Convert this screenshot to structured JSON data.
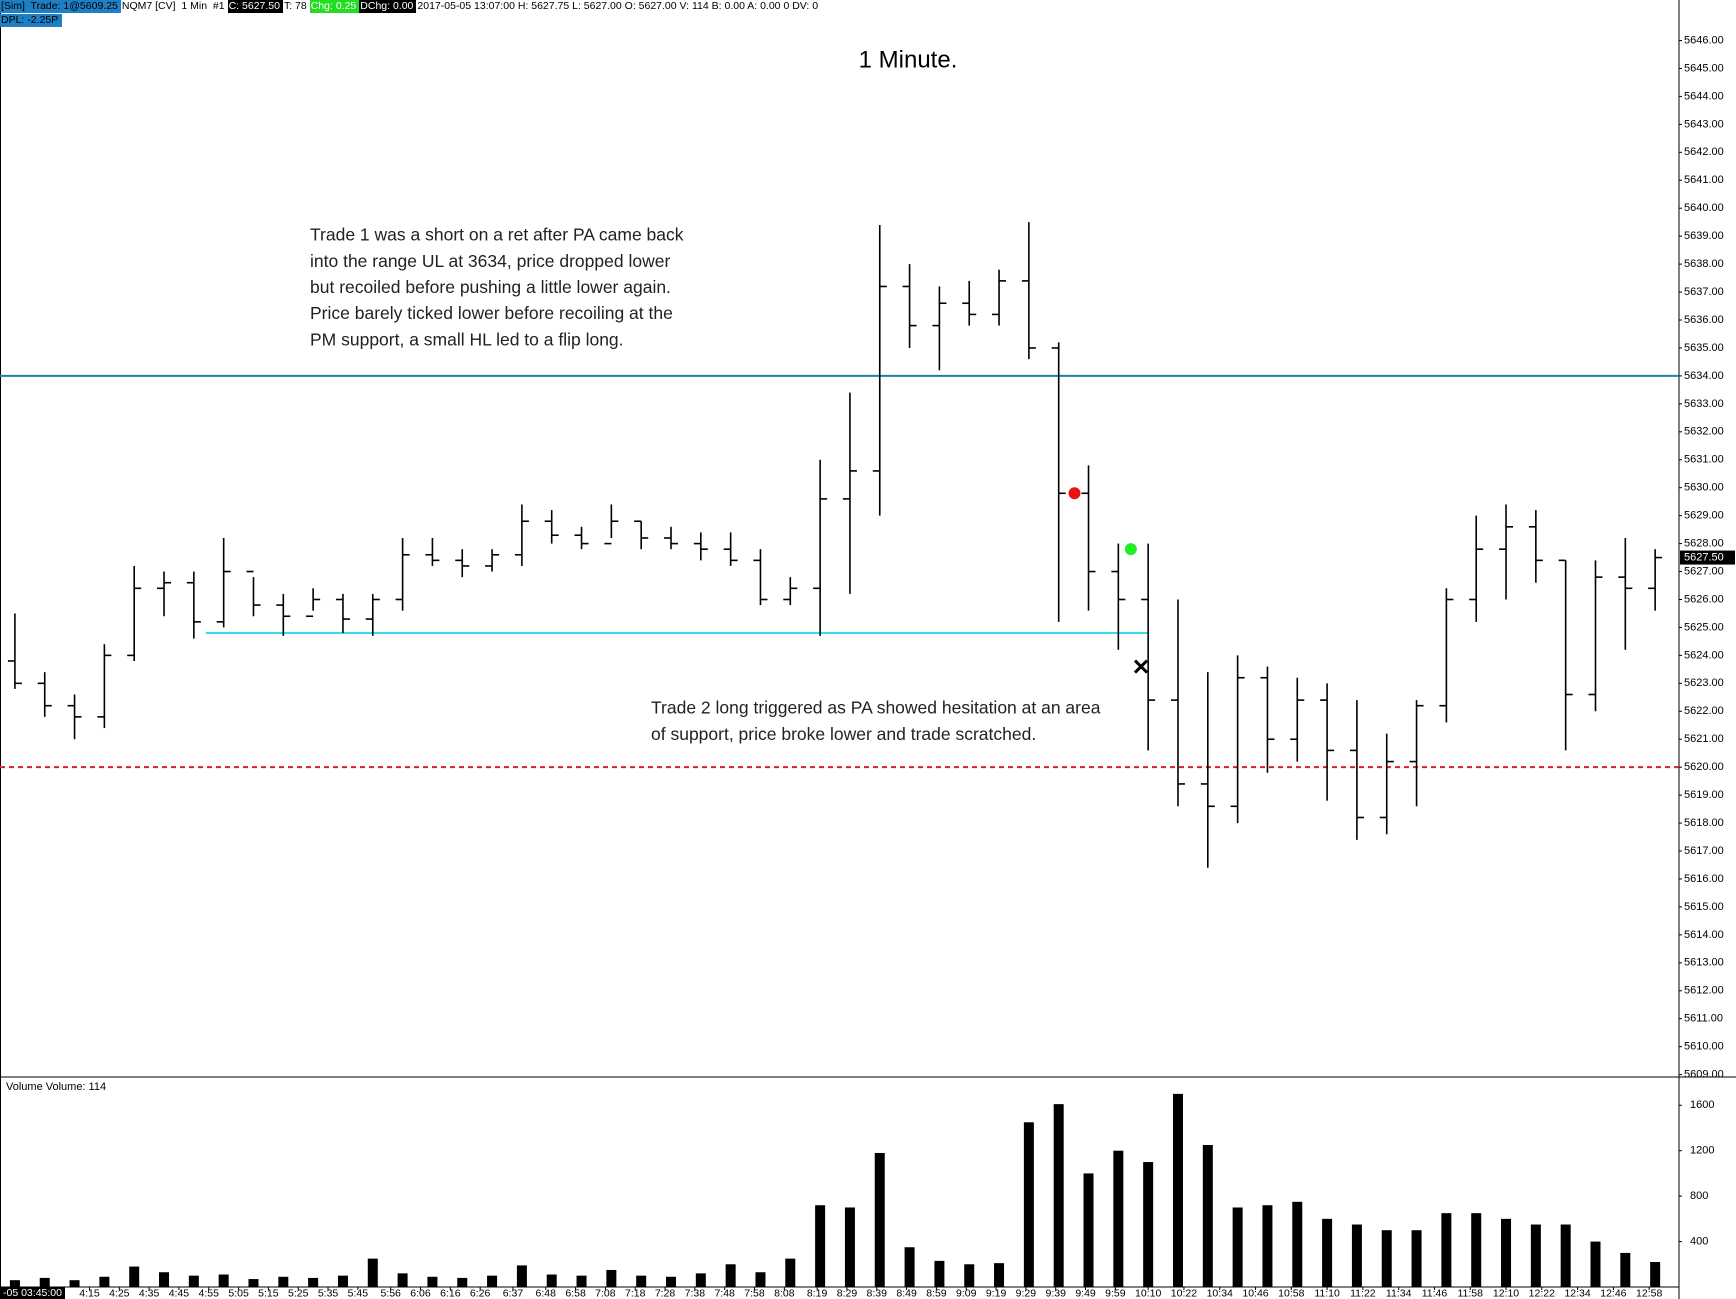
{
  "status_bar": {
    "items": [
      "[Sim]  Trade: 1@5609.25",
      "NQM7 [CV]  1 Min  #1",
      "C: 5627.50",
      "T: 78",
      "Chg: 0.25",
      "DChg: 0.00",
      "2017-05-05 13:07:00 H: 5627.75 L: 5627.00 O: 5627.00 V: 114 B: 0.00 A: 0.00 0 DV: 0"
    ],
    "pnl": "DPL: -2.25P",
    "cursor": "-05 03:45:00"
  },
  "chart_data": [
    {
      "type": "ohlc",
      "title": "1 Minute.",
      "color": "#000000",
      "x": [
        230,
        240,
        250,
        260,
        270,
        280,
        290,
        300,
        310,
        320,
        330,
        340,
        350,
        360,
        370,
        380,
        390,
        400,
        410,
        420,
        430,
        440,
        450,
        460,
        470,
        480,
        490,
        500,
        510,
        520,
        530,
        540,
        550,
        560,
        570,
        580,
        590,
        600,
        610,
        620,
        630,
        640,
        650,
        660,
        670,
        680,
        690,
        700,
        710,
        720,
        730,
        740,
        750,
        760,
        770,
        780
      ],
      "open": [
        5623.8,
        5623.0,
        5622.2,
        5621.8,
        5624.0,
        5626.4,
        5626.6,
        5625.2,
        5627.0,
        5625.8,
        5625.4,
        5626.0,
        5625.3,
        5626.0,
        5627.6,
        5627.4,
        5627.2,
        5627.6,
        5628.8,
        5628.3,
        5628.0,
        5628.8,
        5628.2,
        5628.0,
        5627.8,
        5627.4,
        5626.0,
        5626.4,
        5629.6,
        5630.6,
        5637.2,
        5635.8,
        5636.6,
        5636.2,
        5637.4,
        5635.0,
        5629.8,
        5627.0,
        5626.0,
        5622.4,
        5619.4,
        5618.6,
        5623.2,
        5621.0,
        5622.4,
        5620.6,
        5618.2,
        5620.2,
        5622.2,
        5626.0,
        5627.8,
        5628.6,
        5627.4,
        5622.6,
        5626.8,
        5626.4
      ],
      "high": [
        5625.5,
        5623.4,
        5622.6,
        5624.4,
        5627.2,
        5627.0,
        5627.0,
        5628.2,
        5626.8,
        5626.2,
        5626.4,
        5626.2,
        5626.2,
        5628.2,
        5628.2,
        5627.8,
        5627.8,
        5629.4,
        5629.2,
        5628.6,
        5629.4,
        5628.8,
        5628.6,
        5628.4,
        5628.4,
        5627.8,
        5626.8,
        5631.0,
        5633.4,
        5639.4,
        5638.0,
        5637.2,
        5637.4,
        5637.8,
        5639.5,
        5635.2,
        5630.8,
        5628.0,
        5628.0,
        5626.0,
        5623.4,
        5624.0,
        5623.6,
        5623.2,
        5623.0,
        5622.4,
        5621.2,
        5622.4,
        5626.4,
        5629.0,
        5629.4,
        5629.2,
        5627.4,
        5627.4,
        5628.2,
        5627.8
      ],
      "low": [
        5622.8,
        5621.8,
        5621.0,
        5621.4,
        5623.8,
        5625.4,
        5624.6,
        5625.0,
        5625.4,
        5624.7,
        5625.6,
        5624.8,
        5624.7,
        5625.6,
        5627.2,
        5626.8,
        5627.0,
        5627.2,
        5628.0,
        5627.8,
        5628.2,
        5627.8,
        5627.8,
        5627.4,
        5627.2,
        5625.8,
        5625.8,
        5624.7,
        5626.2,
        5629.0,
        5635.0,
        5634.2,
        5635.8,
        5635.8,
        5634.6,
        5625.2,
        5625.6,
        5624.2,
        5620.6,
        5618.6,
        5616.4,
        5618.0,
        5619.8,
        5620.2,
        5618.8,
        5617.4,
        5617.6,
        5618.6,
        5621.6,
        5625.2,
        5626.0,
        5626.6,
        5620.6,
        5622.0,
        5624.2,
        5625.6
      ],
      "close": [
        5623.0,
        5622.2,
        5621.8,
        5624.0,
        5626.4,
        5626.6,
        5625.2,
        5627.0,
        5625.8,
        5625.4,
        5626.0,
        5625.3,
        5626.0,
        5627.6,
        5627.4,
        5627.2,
        5627.6,
        5628.8,
        5628.3,
        5628.0,
        5628.8,
        5628.2,
        5628.0,
        5627.8,
        5627.4,
        5626.0,
        5626.4,
        5629.6,
        5630.6,
        5637.2,
        5635.8,
        5636.6,
        5636.2,
        5637.4,
        5635.0,
        5629.8,
        5627.0,
        5626.0,
        5622.4,
        5619.4,
        5618.6,
        5623.2,
        5621.0,
        5622.4,
        5620.6,
        5618.2,
        5620.2,
        5622.2,
        5626.0,
        5627.8,
        5628.6,
        5627.4,
        5622.6,
        5626.8,
        5626.4,
        5627.5
      ],
      "xlim": [
        225,
        788
      ],
      "ylim": [
        5608.95,
        5647.45
      ],
      "yticks": [
        {
          "value": 5609,
          "label": "5609.00"
        },
        {
          "value": 5610,
          "label": "5610.00"
        },
        {
          "value": 5611,
          "label": "5611.00"
        },
        {
          "value": 5612,
          "label": "5612.00"
        },
        {
          "value": 5613,
          "label": "5613.00"
        },
        {
          "value": 5614,
          "label": "5614.00"
        },
        {
          "value": 5615,
          "label": "5615.00"
        },
        {
          "value": 5616,
          "label": "5616.00"
        },
        {
          "value": 5617,
          "label": "5617.00"
        },
        {
          "value": 5618,
          "label": "5618.00"
        },
        {
          "value": 5619,
          "label": "5619.00"
        },
        {
          "value": 5620,
          "label": "5620.00"
        },
        {
          "value": 5621,
          "label": "5621.00"
        },
        {
          "value": 5622,
          "label": "5622.00"
        },
        {
          "value": 5623,
          "label": "5623.00"
        },
        {
          "value": 5624,
          "label": "5624.00"
        },
        {
          "value": 5625,
          "label": "5625.00"
        },
        {
          "value": 5626,
          "label": "5626.00"
        },
        {
          "value": 5627,
          "label": "5627.00"
        },
        {
          "value": 5628,
          "label": "5628.00"
        },
        {
          "value": 5629,
          "label": "5629.00"
        },
        {
          "value": 5630,
          "label": "5630.00"
        },
        {
          "value": 5631,
          "label": "5631.00"
        },
        {
          "value": 5632,
          "label": "5632.00"
        },
        {
          "value": 5633,
          "label": "5633.00"
        },
        {
          "value": 5634,
          "label": "5634.00"
        },
        {
          "value": 5635,
          "label": "5635.00"
        },
        {
          "value": 5636,
          "label": "5636.00"
        },
        {
          "value": 5637,
          "label": "5637.00"
        },
        {
          "value": 5638,
          "label": "5638.00"
        },
        {
          "value": 5639,
          "label": "5639.00"
        },
        {
          "value": 5640,
          "label": "5640.00"
        },
        {
          "value": 5641,
          "label": "5641.00"
        },
        {
          "value": 5642,
          "label": "5642.00"
        },
        {
          "value": 5643,
          "label": "5643.00"
        },
        {
          "value": 5644,
          "label": "5644.00"
        },
        {
          "value": 5645,
          "label": "5645.00"
        },
        {
          "value": 5646,
          "label": "5646.00"
        }
      ],
      "last_price": {
        "value": 5627.5,
        "label": "5627.50"
      },
      "hlines": [
        {
          "value": 5634,
          "color": "#1f7fa3",
          "style": "solid"
        },
        {
          "value": 5624.8,
          "color": "#33ddee",
          "style": "solid",
          "xrange": [
            294,
            610
          ]
        },
        {
          "value": 5620,
          "color": "#e02020",
          "style": "dashed"
        }
      ],
      "markers": [
        {
          "shape": "circle",
          "color": "#ee1111",
          "x": 585.3,
          "y": 5629.8
        },
        {
          "shape": "circle",
          "color": "#22ee22",
          "x": 604.2,
          "y": 5627.8
        },
        {
          "shape": "cross",
          "color": "#000000",
          "x": 607.6,
          "y": 5623.6
        }
      ],
      "annotations": [
        {
          "lines": [
            "Trade 1 was a short on a ret after PA came back",
            "into the range UL at 3634, price dropped lower",
            "but recoiled before pushing a little lower again.",
            "Price barely ticked lower before recoiling at the",
            "PM support, a small HL led to a flip long."
          ]
        },
        {
          "lines": [
            "Trade 2 long triggered as PA showed hesitation at an area",
            "of support, price broke lower and trade scratched."
          ]
        }
      ]
    },
    {
      "type": "bar",
      "label": "Volume  Volume: 114",
      "color": "#000000",
      "x": [
        230,
        240,
        250,
        260,
        270,
        280,
        290,
        300,
        310,
        320,
        330,
        340,
        350,
        360,
        370,
        380,
        390,
        400,
        410,
        420,
        430,
        440,
        450,
        460,
        470,
        480,
        490,
        500,
        510,
        520,
        530,
        540,
        550,
        560,
        570,
        580,
        590,
        600,
        610,
        620,
        630,
        640,
        650,
        660,
        670,
        680,
        690,
        700,
        710,
        720,
        730,
        740,
        750,
        760,
        770,
        780
      ],
      "values": [
        60,
        80,
        60,
        90,
        180,
        130,
        100,
        110,
        70,
        90,
        80,
        100,
        250,
        120,
        90,
        80,
        100,
        190,
        110,
        100,
        150,
        100,
        90,
        120,
        200,
        130,
        250,
        720,
        700,
        1180,
        350,
        230,
        200,
        210,
        1450,
        1610,
        1000,
        1200,
        1100,
        1700,
        1250,
        700,
        720,
        750,
        600,
        550,
        500,
        500,
        650,
        650,
        600,
        550,
        550,
        400,
        300,
        220
      ],
      "xlim": [
        225,
        788
      ],
      "ylim": [
        0,
        1840
      ],
      "yticks": [
        400,
        800,
        1200,
        1600
      ],
      "xticks": [
        {
          "value": 255,
          "label": "4:15"
        },
        {
          "value": 265,
          "label": "4:25"
        },
        {
          "value": 275,
          "label": "4:35"
        },
        {
          "value": 285,
          "label": "4:45"
        },
        {
          "value": 295,
          "label": "4:55"
        },
        {
          "value": 305,
          "label": "5:05"
        },
        {
          "value": 315,
          "label": "5:15"
        },
        {
          "value": 325,
          "label": "5:25"
        },
        {
          "value": 335,
          "label": "5:35"
        },
        {
          "value": 345,
          "label": "5:45"
        },
        {
          "value": 356,
          "label": "5:56"
        },
        {
          "value": 366,
          "label": "6:06"
        },
        {
          "value": 376,
          "label": "6:16"
        },
        {
          "value": 386,
          "label": "6:26"
        },
        {
          "value": 397,
          "label": "6:37"
        },
        {
          "value": 408,
          "label": "6:48"
        },
        {
          "value": 418,
          "label": "6:58"
        },
        {
          "value": 428,
          "label": "7:08"
        },
        {
          "value": 438,
          "label": "7:18"
        },
        {
          "value": 448,
          "label": "7:28"
        },
        {
          "value": 458,
          "label": "7:38"
        },
        {
          "value": 468,
          "label": "7:48"
        },
        {
          "value": 478,
          "label": "7:58"
        },
        {
          "value": 488,
          "label": "8:08"
        },
        {
          "value": 499,
          "label": "8:19"
        },
        {
          "value": 509,
          "label": "8:29"
        },
        {
          "value": 519,
          "label": "8:39"
        },
        {
          "value": 529,
          "label": "8:49"
        },
        {
          "value": 539,
          "label": "8:59"
        },
        {
          "value": 549,
          "label": "9:09"
        },
        {
          "value": 559,
          "label": "9:19"
        },
        {
          "value": 569,
          "label": "9:29"
        },
        {
          "value": 579,
          "label": "9:39"
        },
        {
          "value": 589,
          "label": "9:49"
        },
        {
          "value": 599,
          "label": "9:59"
        },
        {
          "value": 610,
          "label": "10:10"
        },
        {
          "value": 622,
          "label": "10:22"
        },
        {
          "value": 634,
          "label": "10:34"
        },
        {
          "value": 646,
          "label": "10:46"
        },
        {
          "value": 658,
          "label": "10:58"
        },
        {
          "value": 670,
          "label": "11:10"
        },
        {
          "value": 682,
          "label": "11:22"
        },
        {
          "value": 694,
          "label": "11:34"
        },
        {
          "value": 706,
          "label": "11:46"
        },
        {
          "value": 718,
          "label": "11:58"
        },
        {
          "value": 730,
          "label": "12:10"
        },
        {
          "value": 742,
          "label": "12:22"
        },
        {
          "value": 754,
          "label": "12:34"
        },
        {
          "value": 766,
          "label": "12:46"
        },
        {
          "value": 778,
          "label": "12:58"
        }
      ]
    }
  ]
}
